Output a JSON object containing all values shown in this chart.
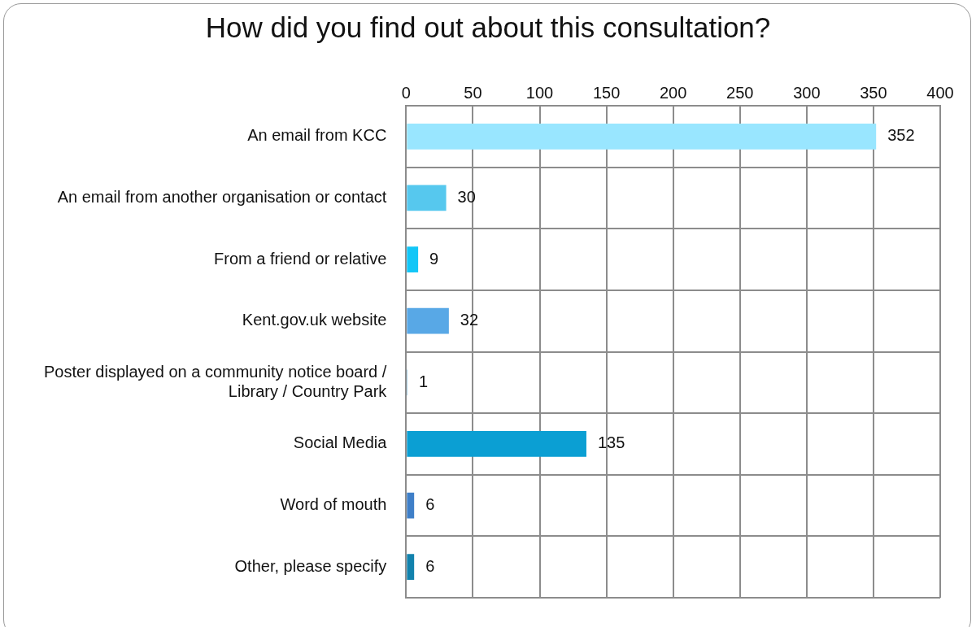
{
  "chart_data": {
    "type": "bar",
    "orientation": "horizontal",
    "title": "How did you find out about this consultation?",
    "categories": [
      "An email from KCC",
      "An email from another organisation or contact",
      "From a friend or relative",
      "Kent.gov.uk website",
      "Poster displayed on a community notice board / Library / Country Park",
      "Social Media",
      "Word of mouth",
      "Other, please specify"
    ],
    "values": [
      352,
      30,
      9,
      32,
      1,
      135,
      6,
      6
    ],
    "colors": [
      "#99e6ff",
      "#56c8ee",
      "#12c6f7",
      "#58a8e6",
      "#7ab8d8",
      "#0b9fd3",
      "#3f7fc8",
      "#1282ad"
    ],
    "xlim": [
      0,
      400
    ],
    "xticks": [
      0,
      50,
      100,
      150,
      200,
      250,
      300,
      350,
      400
    ],
    "grid": true,
    "data_labels": true
  }
}
